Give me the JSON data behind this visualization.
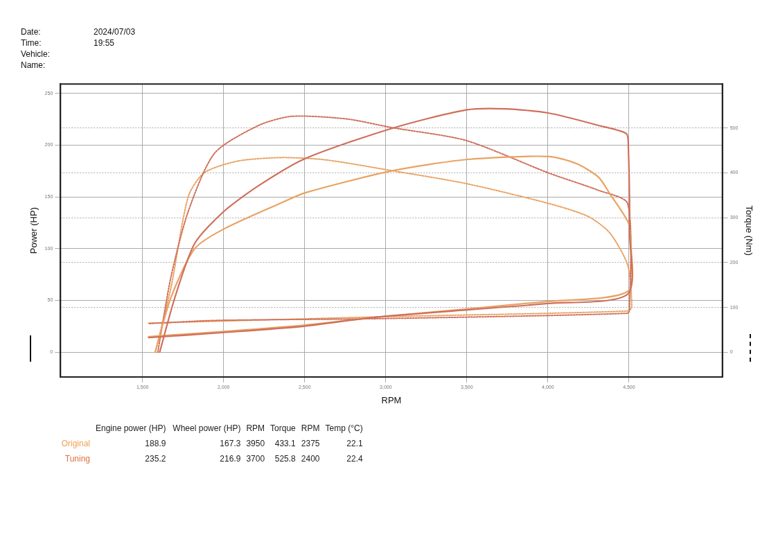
{
  "chart_data": [
    {
      "type": "line",
      "xlabel": "RPM",
      "ylabel": "Power (HP)",
      "y2label": "Torque (Nm)",
      "annotations": [
        "Date: 2024/07/03",
        "Time: 19:55",
        "Vehicle:",
        "Name:"
      ],
      "xlim": [
        994,
        5076
      ],
      "xticks": [
        {
          "value": 1500,
          "label": "1,500"
        },
        {
          "value": 2000,
          "label": "2,000"
        },
        {
          "value": 2500,
          "label": "2,500"
        },
        {
          "value": 3000,
          "label": "3,000"
        },
        {
          "value": 3500,
          "label": "3,500"
        },
        {
          "value": 4000,
          "label": "4,000"
        },
        {
          "value": 4500,
          "label": "4,500"
        }
      ],
      "ylim": [
        -24,
        259
      ],
      "yticks": [
        0,
        50,
        100,
        150,
        200,
        250
      ],
      "y2lim": [
        -55,
        598
      ],
      "y2ticks": [
        0,
        100,
        200,
        300,
        400,
        500
      ],
      "grid": true,
      "marker": "none",
      "series": [
        {
          "color": "#cf6f5a",
          "line_style": "solid",
          "x": [
            1606,
            1700,
            1822,
            2002,
            2218,
            2504,
            3035,
            3496,
            3741,
            4002,
            4312,
            4484,
            4496,
            4504,
            4492,
            4002,
            2953,
            2492,
            2002,
            1537
          ],
          "values": [
            0,
            53,
            105,
            136,
            161,
            187,
            216,
            234,
            235,
            231,
            219,
            211,
            199,
            115,
            56,
            47,
            34,
            25,
            19,
            14
          ]
        },
        {
          "color": "#e9a263",
          "line_style": "solid",
          "x": [
            1578,
            1676,
            1822,
            2002,
            2353,
            2504,
            3035,
            3496,
            4002,
            4178,
            4312,
            4382,
            4496,
            4512,
            4496,
            4002,
            2953,
            2492,
            2002,
            1537
          ],
          "values": [
            0,
            53,
            100,
            119,
            144,
            154,
            175,
            186,
            189,
            182,
            169,
            153,
            125,
            105,
            59,
            49,
            34,
            26,
            20,
            15
          ]
        },
        {
          "color": "#cf6f5a",
          "line_style": "dotted",
          "axis": "y2",
          "x": [
            1594,
            1676,
            1782,
            1945,
            2218,
            2422,
            2761,
            3035,
            3496,
            4002,
            4312,
            4492,
            4504,
            4492,
            2953,
            1945,
            1537
          ],
          "values": [
            0,
            169,
            314,
            444,
            506,
            526,
            520,
            501,
            472,
            400,
            361,
            331,
            97,
            87,
            75,
            71,
            64
          ]
        },
        {
          "color": "#e9a263",
          "line_style": "dotted",
          "axis": "y2",
          "x": [
            1578,
            1676,
            1782,
            1880,
            2084,
            2353,
            2627,
            3035,
            3496,
            4002,
            4247,
            4382,
            4492,
            4517,
            4492,
            2953,
            1537
          ],
          "values": [
            0,
            145,
            347,
            400,
            426,
            434,
            429,
            405,
            376,
            332,
            303,
            266,
            194,
            101,
            92,
            79,
            65
          ]
        }
      ]
    },
    {
      "type": "other",
      "categories": [
        "Engine power (HP)",
        "Wheel power (HP)",
        "RPM",
        "Torque",
        "RPM",
        "Temp (°C)"
      ],
      "data_labels": true,
      "series": [
        {
          "name": "Original",
          "color": "#f0a050",
          "values": [
            188.9,
            167.3,
            3950,
            433.1,
            2375,
            22.1
          ]
        },
        {
          "name": "Tuning",
          "color": "#e07040",
          "values": [
            235.2,
            216.9,
            3700,
            525.8,
            2400,
            22.4
          ]
        }
      ]
    }
  ]
}
